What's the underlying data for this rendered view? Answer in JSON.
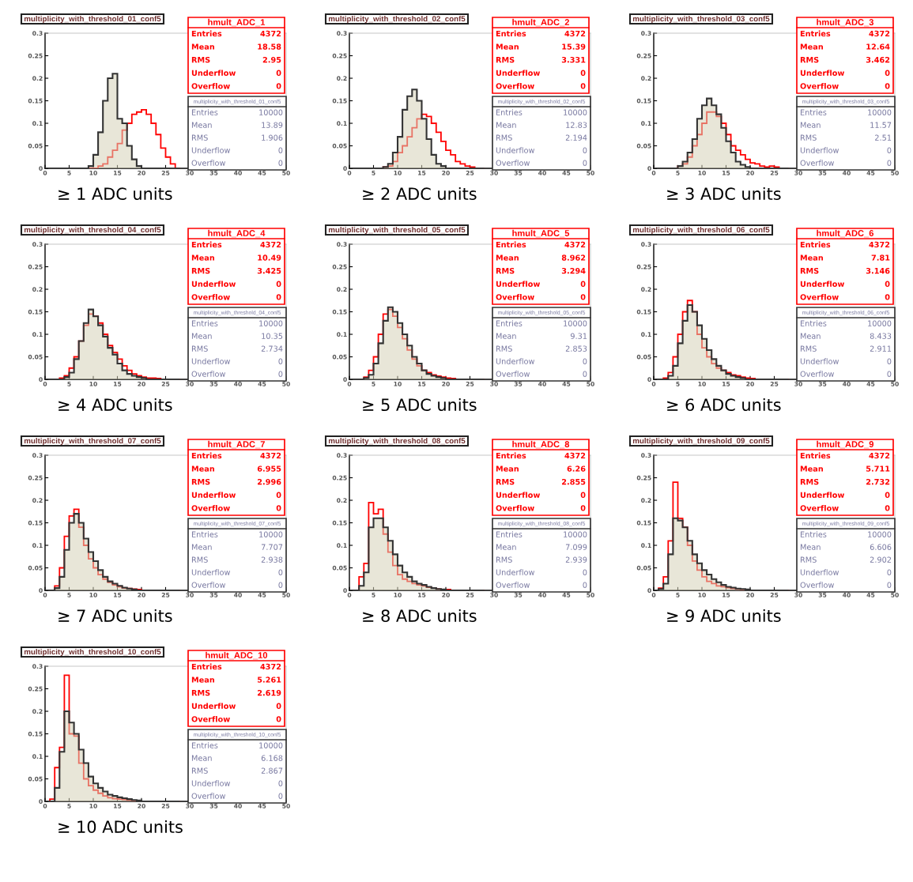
{
  "chart_data": [
    {
      "type": "histogram",
      "title": "multiplicity_with_threshold_01_conf5",
      "xlabel": "≥ 1 ADC units",
      "bins": [
        0,
        1,
        2,
        3,
        4,
        5,
        6,
        7,
        8,
        9,
        10,
        11,
        12,
        13,
        14,
        15,
        16,
        17,
        18,
        19,
        20,
        21,
        22,
        23,
        24,
        25,
        26,
        27,
        28
      ],
      "xlim": [
        0,
        50
      ],
      "xticks": [
        0,
        5,
        10,
        15,
        20,
        25,
        30,
        35,
        40,
        45,
        50
      ],
      "ylim": [
        0,
        0.3
      ],
      "yticks": [
        0,
        0.05,
        0.1,
        0.15,
        0.2,
        0.25,
        0.3
      ],
      "series": [
        {
          "color": "#ff0000",
          "values": [
            0,
            0,
            0,
            0,
            0,
            0,
            0,
            0,
            0,
            0,
            0,
            0.005,
            0.01,
            0.025,
            0.04,
            0.055,
            0.085,
            0.1,
            0.12,
            0.125,
            0.13,
            0.12,
            0.1,
            0.075,
            0.045,
            0.025,
            0.01,
            0
          ]
        },
        {
          "color": "#333333",
          "values": [
            0,
            0,
            0,
            0,
            0,
            0,
            0,
            0,
            0,
            0.005,
            0.03,
            0.08,
            0.15,
            0.2,
            0.21,
            0.11,
            0.1,
            0.05,
            0.02,
            0.005,
            0,
            0,
            0,
            0,
            0,
            0,
            0,
            0
          ]
        }
      ],
      "annotations": [
        "hmult_ADC_1",
        "Entries",
        "4372",
        "Mean",
        "18.58",
        "RMS",
        "2.95",
        "Underflow",
        "0",
        "Overflow",
        "0",
        "multiplicity_with_threshold_01_conf5",
        "Entries",
        "10000",
        "Mean",
        "13.89",
        "RMS",
        "1.906",
        "Underflow",
        "0",
        "Overflow",
        "0"
      ]
    },
    {
      "type": "histogram",
      "title": "multiplicity_with_threshold_02_conf5",
      "xlabel": "≥ 2 ADC units",
      "bins": [
        0,
        1,
        2,
        3,
        4,
        5,
        6,
        7,
        8,
        9,
        10,
        11,
        12,
        13,
        14,
        15,
        16,
        17,
        18,
        19,
        20,
        21,
        22,
        23,
        24,
        25,
        26,
        27,
        28
      ],
      "xlim": [
        0,
        50
      ],
      "xticks": [
        0,
        5,
        10,
        15,
        20,
        25,
        30,
        35,
        40,
        45,
        50
      ],
      "ylim": [
        0,
        0.3
      ],
      "yticks": [
        0,
        0.05,
        0.1,
        0.15,
        0.2,
        0.25,
        0.3
      ],
      "series": [
        {
          "color": "#ff0000",
          "values": [
            0,
            0,
            0,
            0,
            0,
            0,
            0,
            0.003,
            0.005,
            0.015,
            0.035,
            0.05,
            0.07,
            0.09,
            0.11,
            0.12,
            0.115,
            0.1,
            0.08,
            0.06,
            0.04,
            0.03,
            0.015,
            0.01,
            0.005,
            0.003,
            0,
            0
          ]
        },
        {
          "color": "#333333",
          "values": [
            0,
            0,
            0,
            0,
            0,
            0,
            0,
            0.003,
            0.01,
            0.035,
            0.07,
            0.13,
            0.16,
            0.175,
            0.15,
            0.11,
            0.065,
            0.03,
            0.01,
            0.005,
            0,
            0,
            0,
            0,
            0,
            0,
            0,
            0
          ]
        }
      ],
      "annotations": [
        "hmult_ADC_2",
        "Entries",
        "4372",
        "Mean",
        "15.39",
        "RMS",
        "3.331",
        "Underflow",
        "0",
        "Overflow",
        "0",
        "multiplicity_with_threshold_02_conf5",
        "Entries",
        "10000",
        "Mean",
        "12.83",
        "RMS",
        "2.194",
        "Underflow",
        "0",
        "Overflow",
        "0"
      ]
    },
    {
      "type": "histogram",
      "title": "multiplicity_with_threshold_03_conf5",
      "xlabel": "≥ 3 ADC units",
      "bins": [
        0,
        1,
        2,
        3,
        4,
        5,
        6,
        7,
        8,
        9,
        10,
        11,
        12,
        13,
        14,
        15,
        16,
        17,
        18,
        19,
        20,
        21,
        22,
        23,
        24,
        25,
        26,
        27,
        28
      ],
      "xlim": [
        0,
        50
      ],
      "xticks": [
        0,
        5,
        10,
        15,
        20,
        25,
        30,
        35,
        40,
        45,
        50
      ],
      "ylim": [
        0,
        0.3
      ],
      "yticks": [
        0,
        0.05,
        0.1,
        0.15,
        0.2,
        0.25,
        0.3
      ],
      "series": [
        {
          "color": "#ff0000",
          "values": [
            0,
            0,
            0,
            0,
            0,
            0.005,
            0.01,
            0.025,
            0.05,
            0.075,
            0.1,
            0.125,
            0.125,
            0.115,
            0.1,
            0.075,
            0.05,
            0.04,
            0.03,
            0.02,
            0.012,
            0.01,
            0.005,
            0.003,
            0.005,
            0.003,
            0,
            0
          ]
        },
        {
          "color": "#333333",
          "values": [
            0,
            0,
            0,
            0,
            0,
            0.005,
            0.015,
            0.035,
            0.065,
            0.11,
            0.14,
            0.155,
            0.14,
            0.12,
            0.09,
            0.06,
            0.035,
            0.015,
            0.008,
            0.003,
            0,
            0,
            0,
            0,
            0,
            0,
            0,
            0
          ]
        }
      ],
      "annotations": [
        "hmult_ADC_3",
        "Entries",
        "4372",
        "Mean",
        "12.64",
        "RMS",
        "3.462",
        "Underflow",
        "0",
        "Overflow",
        "0",
        "multiplicity_with_threshold_03_conf5",
        "Entries",
        "10000",
        "Mean",
        "11.57",
        "RMS",
        "2.51",
        "Underflow",
        "0",
        "Overflow",
        "0"
      ]
    },
    {
      "type": "histogram",
      "title": "multiplicity_with_threshold_04_conf5",
      "xlabel": "≥ 4 ADC units",
      "bins": [
        0,
        1,
        2,
        3,
        4,
        5,
        6,
        7,
        8,
        9,
        10,
        11,
        12,
        13,
        14,
        15,
        16,
        17,
        18,
        19,
        20,
        21,
        22,
        23,
        24,
        25,
        26,
        27,
        28
      ],
      "xlim": [
        0,
        50
      ],
      "xticks": [
        0,
        5,
        10,
        15,
        20,
        25,
        30,
        35,
        40,
        45,
        50
      ],
      "ylim": [
        0,
        0.3
      ],
      "yticks": [
        0,
        0.05,
        0.1,
        0.15,
        0.2,
        0.25,
        0.3
      ],
      "series": [
        {
          "color": "#ff0000",
          "values": [
            0,
            0,
            0,
            0.003,
            0.008,
            0.025,
            0.05,
            0.085,
            0.12,
            0.145,
            0.14,
            0.125,
            0.1,
            0.075,
            0.06,
            0.045,
            0.03,
            0.02,
            0.012,
            0.008,
            0.005,
            0.003,
            0.003,
            0.002,
            0,
            0,
            0,
            0
          ]
        },
        {
          "color": "#333333",
          "values": [
            0,
            0,
            0,
            0,
            0.005,
            0.015,
            0.045,
            0.085,
            0.125,
            0.155,
            0.14,
            0.12,
            0.095,
            0.07,
            0.055,
            0.035,
            0.02,
            0.012,
            0.008,
            0.005,
            0.003,
            0,
            0,
            0,
            0,
            0,
            0,
            0
          ]
        }
      ],
      "annotations": [
        "hmult_ADC_4",
        "Entries",
        "4372",
        "Mean",
        "10.49",
        "RMS",
        "3.425",
        "Underflow",
        "0",
        "Overflow",
        "0",
        "multiplicity_with_threshold_04_conf5",
        "Entries",
        "10000",
        "Mean",
        "10.35",
        "RMS",
        "2.734",
        "Underflow",
        "0",
        "Overflow",
        "0"
      ]
    },
    {
      "type": "histogram",
      "title": "multiplicity_with_threshold_05_conf5",
      "xlabel": "≥ 5 ADC units",
      "bins": [
        0,
        1,
        2,
        3,
        4,
        5,
        6,
        7,
        8,
        9,
        10,
        11,
        12,
        13,
        14,
        15,
        16,
        17,
        18,
        19,
        20,
        21,
        22,
        23,
        24,
        25,
        26,
        27,
        28
      ],
      "xlim": [
        0,
        50
      ],
      "xticks": [
        0,
        5,
        10,
        15,
        20,
        25,
        30,
        35,
        40,
        45,
        50
      ],
      "ylim": [
        0,
        0.3
      ],
      "yticks": [
        0,
        0.05,
        0.1,
        0.15,
        0.2,
        0.25,
        0.3
      ],
      "series": [
        {
          "color": "#ff0000",
          "values": [
            0,
            0,
            0,
            0.005,
            0.02,
            0.05,
            0.1,
            0.145,
            0.155,
            0.14,
            0.115,
            0.09,
            0.065,
            0.045,
            0.03,
            0.02,
            0.015,
            0.01,
            0.007,
            0.005,
            0.003,
            0.002,
            0,
            0,
            0,
            0,
            0,
            0
          ]
        },
        {
          "color": "#333333",
          "values": [
            0,
            0,
            0,
            0.003,
            0.01,
            0.035,
            0.08,
            0.13,
            0.16,
            0.15,
            0.125,
            0.1,
            0.075,
            0.05,
            0.035,
            0.02,
            0.012,
            0.008,
            0.005,
            0.003,
            0,
            0,
            0,
            0,
            0,
            0,
            0,
            0
          ]
        }
      ],
      "annotations": [
        "hmult_ADC_5",
        "Entries",
        "4372",
        "Mean",
        "8.962",
        "RMS",
        "3.294",
        "Underflow",
        "0",
        "Overflow",
        "0",
        "multiplicity_with_threshold_05_conf5",
        "Entries",
        "10000",
        "Mean",
        "9.31",
        "RMS",
        "2.853",
        "Underflow",
        "0",
        "Overflow",
        "0"
      ]
    },
    {
      "type": "histogram",
      "title": "multiplicity_with_threshold_06_conf5",
      "xlabel": "≥ 6 ADC units",
      "bins": [
        0,
        1,
        2,
        3,
        4,
        5,
        6,
        7,
        8,
        9,
        10,
        11,
        12,
        13,
        14,
        15,
        16,
        17,
        18,
        19,
        20,
        21,
        22,
        23,
        24,
        25,
        26,
        27,
        28
      ],
      "xlim": [
        0,
        50
      ],
      "xticks": [
        0,
        5,
        10,
        15,
        20,
        25,
        30,
        35,
        40,
        45,
        50
      ],
      "ylim": [
        0,
        0.3
      ],
      "yticks": [
        0,
        0.05,
        0.1,
        0.15,
        0.2,
        0.25,
        0.3
      ],
      "series": [
        {
          "color": "#ff0000",
          "values": [
            0,
            0,
            0.003,
            0.015,
            0.05,
            0.1,
            0.15,
            0.175,
            0.15,
            0.1,
            0.07,
            0.05,
            0.035,
            0.025,
            0.02,
            0.015,
            0.01,
            0.008,
            0.005,
            0.003,
            0.002,
            0,
            0,
            0,
            0,
            0,
            0,
            0
          ]
        },
        {
          "color": "#333333",
          "values": [
            0,
            0,
            0,
            0.008,
            0.03,
            0.08,
            0.13,
            0.165,
            0.15,
            0.12,
            0.09,
            0.065,
            0.045,
            0.03,
            0.02,
            0.012,
            0.008,
            0.005,
            0.003,
            0,
            0,
            0,
            0,
            0,
            0,
            0,
            0,
            0
          ]
        }
      ],
      "annotations": [
        "hmult_ADC_6",
        "Entries",
        "4372",
        "Mean",
        "7.81",
        "RMS",
        "3.146",
        "Underflow",
        "0",
        "Overflow",
        "0",
        "multiplicity_with_threshold_06_conf5",
        "Entries",
        "10000",
        "Mean",
        "8.433",
        "RMS",
        "2.911",
        "Underflow",
        "0",
        "Overflow",
        "0"
      ]
    },
    {
      "type": "histogram",
      "title": "multiplicity_with_threshold_07_conf5",
      "xlabel": "≥ 7 ADC units",
      "bins": [
        0,
        1,
        2,
        3,
        4,
        5,
        6,
        7,
        8,
        9,
        10,
        11,
        12,
        13,
        14,
        15,
        16,
        17,
        18,
        19,
        20,
        21,
        22,
        23,
        24,
        25,
        26,
        27,
        28
      ],
      "xlim": [
        0,
        50
      ],
      "xticks": [
        0,
        5,
        10,
        15,
        20,
        25,
        30,
        35,
        40,
        45,
        50
      ],
      "ylim": [
        0,
        0.3
      ],
      "yticks": [
        0,
        0.05,
        0.1,
        0.15,
        0.2,
        0.25,
        0.3
      ],
      "series": [
        {
          "color": "#ff0000",
          "values": [
            0,
            0,
            0.01,
            0.05,
            0.12,
            0.165,
            0.18,
            0.14,
            0.1,
            0.07,
            0.05,
            0.035,
            0.025,
            0.018,
            0.012,
            0.008,
            0.005,
            0.004,
            0.003,
            0.002,
            0,
            0,
            0,
            0,
            0,
            0,
            0,
            0
          ]
        },
        {
          "color": "#333333",
          "values": [
            0,
            0,
            0.005,
            0.03,
            0.09,
            0.15,
            0.17,
            0.15,
            0.115,
            0.085,
            0.065,
            0.045,
            0.03,
            0.02,
            0.015,
            0.01,
            0.006,
            0.004,
            0.002,
            0,
            0,
            0,
            0,
            0,
            0,
            0,
            0,
            0
          ]
        }
      ],
      "annotations": [
        "hmult_ADC_7",
        "Entries",
        "4372",
        "Mean",
        "6.955",
        "RMS",
        "2.996",
        "Underflow",
        "0",
        "Overflow",
        "0",
        "multiplicity_with_threshold_07_conf5",
        "Entries",
        "10000",
        "Mean",
        "7.707",
        "RMS",
        "2.938",
        "Underflow",
        "0",
        "Overflow",
        "0"
      ]
    },
    {
      "type": "histogram",
      "title": "multiplicity_with_threshold_08_conf5",
      "xlabel": "≥ 8 ADC units",
      "bins": [
        0,
        1,
        2,
        3,
        4,
        5,
        6,
        7,
        8,
        9,
        10,
        11,
        12,
        13,
        14,
        15,
        16,
        17,
        18,
        19,
        20,
        21,
        22,
        23,
        24,
        25,
        26,
        27,
        28
      ],
      "xlim": [
        0,
        50
      ],
      "xticks": [
        0,
        5,
        10,
        15,
        20,
        25,
        30,
        35,
        40,
        45,
        50
      ],
      "ylim": [
        0,
        0.3
      ],
      "yticks": [
        0,
        0.05,
        0.1,
        0.15,
        0.2,
        0.25,
        0.3
      ],
      "series": [
        {
          "color": "#ff0000",
          "values": [
            0,
            0,
            0.03,
            0.06,
            0.195,
            0.17,
            0.18,
            0.125,
            0.085,
            0.055,
            0.035,
            0.025,
            0.02,
            0.015,
            0.012,
            0.01,
            0.007,
            0.005,
            0.003,
            0.002,
            0.002,
            0,
            0,
            0,
            0,
            0,
            0,
            0
          ]
        },
        {
          "color": "#333333",
          "values": [
            0,
            0,
            0.01,
            0.04,
            0.14,
            0.16,
            0.16,
            0.14,
            0.11,
            0.08,
            0.055,
            0.04,
            0.03,
            0.02,
            0.015,
            0.012,
            0.008,
            0.005,
            0.003,
            0.002,
            0,
            0,
            0,
            0,
            0,
            0,
            0,
            0
          ]
        }
      ],
      "annotations": [
        "hmult_ADC_8",
        "Entries",
        "4372",
        "Mean",
        "6.26",
        "RMS",
        "2.855",
        "Underflow",
        "0",
        "Overflow",
        "0",
        "multiplicity_with_threshold_08_conf5",
        "Entries",
        "10000",
        "Mean",
        "7.099",
        "RMS",
        "2.939",
        "Underflow",
        "0",
        "Overflow",
        "0"
      ]
    },
    {
      "type": "histogram",
      "title": "multiplicity_with_threshold_09_conf5",
      "xlabel": "≥ 9 ADC units",
      "bins": [
        0,
        1,
        2,
        3,
        4,
        5,
        6,
        7,
        8,
        9,
        10,
        11,
        12,
        13,
        14,
        15,
        16,
        17,
        18,
        19,
        20,
        21,
        22,
        23,
        24,
        25,
        26,
        27,
        28
      ],
      "xlim": [
        0,
        50
      ],
      "xticks": [
        0,
        5,
        10,
        15,
        20,
        25,
        30,
        35,
        40,
        45,
        50
      ],
      "ylim": [
        0,
        0.3
      ],
      "yticks": [
        0,
        0.05,
        0.1,
        0.15,
        0.2,
        0.25,
        0.3
      ],
      "series": [
        {
          "color": "#ff0000",
          "values": [
            0,
            0.005,
            0.03,
            0.11,
            0.24,
            0.16,
            0.14,
            0.1,
            0.065,
            0.045,
            0.03,
            0.02,
            0.015,
            0.01,
            0.008,
            0.006,
            0.004,
            0.003,
            0.002,
            0,
            0,
            0,
            0,
            0,
            0,
            0,
            0,
            0
          ]
        },
        {
          "color": "#333333",
          "values": [
            0,
            0.003,
            0.015,
            0.08,
            0.16,
            0.155,
            0.14,
            0.11,
            0.08,
            0.06,
            0.045,
            0.035,
            0.025,
            0.018,
            0.012,
            0.008,
            0.006,
            0.004,
            0.003,
            0.002,
            0,
            0,
            0,
            0,
            0,
            0,
            0,
            0
          ]
        }
      ],
      "annotations": [
        "hmult_ADC_9",
        "Entries",
        "4372",
        "Mean",
        "5.711",
        "RMS",
        "2.732",
        "Underflow",
        "0",
        "Overflow",
        "0",
        "multiplicity_with_threshold_09_conf5",
        "Entries",
        "10000",
        "Mean",
        "6.606",
        "RMS",
        "2.902",
        "Underflow",
        "0",
        "Overflow",
        "0"
      ]
    },
    {
      "type": "histogram",
      "title": "multiplicity_with_threshold_10_conf5",
      "xlabel": "≥ 10 ADC units",
      "bins": [
        0,
        1,
        2,
        3,
        4,
        5,
        6,
        7,
        8,
        9,
        10,
        11,
        12,
        13,
        14,
        15,
        16,
        17,
        18,
        19,
        20,
        21,
        22,
        23,
        24,
        25,
        26,
        27,
        28
      ],
      "xlim": [
        0,
        50
      ],
      "xticks": [
        0,
        5,
        10,
        15,
        20,
        25,
        30,
        35,
        40,
        45,
        50
      ],
      "ylim": [
        0,
        0.3
      ],
      "yticks": [
        0,
        0.05,
        0.1,
        0.15,
        0.2,
        0.25,
        0.3
      ],
      "series": [
        {
          "color": "#ff0000",
          "values": [
            0,
            0.005,
            0.075,
            0.12,
            0.28,
            0.15,
            0.145,
            0.085,
            0.05,
            0.035,
            0.025,
            0.018,
            0.012,
            0.008,
            0.006,
            0.005,
            0.004,
            0.003,
            0.002,
            0,
            0,
            0,
            0,
            0,
            0,
            0,
            0,
            0
          ]
        },
        {
          "color": "#333333",
          "values": [
            0,
            0,
            0.03,
            0.11,
            0.2,
            0.175,
            0.15,
            0.115,
            0.085,
            0.055,
            0.04,
            0.03,
            0.022,
            0.015,
            0.012,
            0.009,
            0.007,
            0.005,
            0.003,
            0.002,
            0,
            0,
            0,
            0,
            0,
            0,
            0,
            0
          ]
        }
      ],
      "annotations": [
        "hmult_ADC_10",
        "Entries",
        "4372",
        "Mean",
        "5.261",
        "RMS",
        "2.619",
        "Underflow",
        "0",
        "Overflow",
        "0",
        "multiplicity_with_threshold_10_conf5",
        "Entries",
        "10000",
        "Mean",
        "6.168",
        "RMS",
        "2.867",
        "Underflow",
        "0",
        "Overflow",
        "0"
      ]
    }
  ]
}
